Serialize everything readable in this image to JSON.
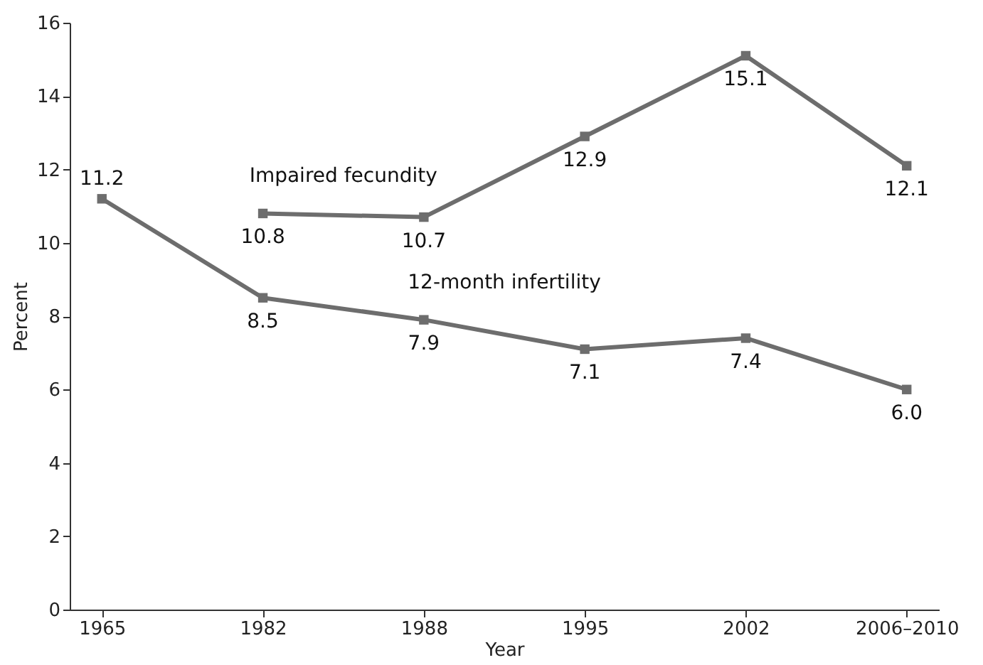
{
  "chart_data": {
    "type": "line",
    "xlabel": "Year",
    "ylabel": "Percent",
    "categories": [
      "1965",
      "1982",
      "1988",
      "1995",
      "2002",
      "2006–2010"
    ],
    "series": [
      {
        "name": "Impaired fecundity",
        "color": "#6d6d6d",
        "values": [
          null,
          10.8,
          10.7,
          12.9,
          15.1,
          12.1
        ],
        "value_labels": [
          null,
          "10.8",
          "10.7",
          "12.9",
          "15.1",
          "12.1"
        ]
      },
      {
        "name": "12-month infertility",
        "color": "#6d6d6d",
        "values": [
          11.2,
          8.5,
          7.9,
          7.1,
          7.4,
          6.0
        ],
        "value_labels": [
          "11.2",
          "8.5",
          "7.9",
          "7.1",
          "7.4",
          "6.0"
        ]
      }
    ],
    "ylim": [
      0,
      16
    ],
    "yticks": [
      0,
      2,
      4,
      6,
      8,
      10,
      12,
      14,
      16
    ],
    "grid": false,
    "legend": false,
    "marker": "square",
    "line_style": "solid"
  }
}
